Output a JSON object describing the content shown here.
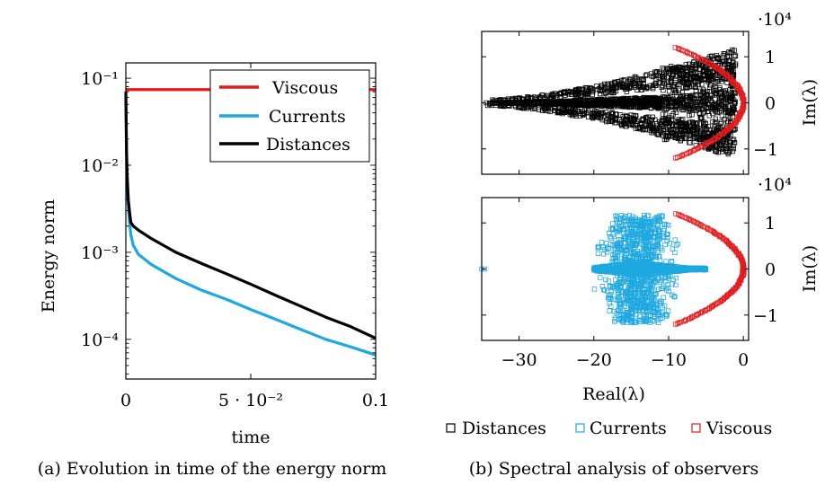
{
  "chart_data": [
    {
      "type": "line",
      "caption": "(a) Evolution in time of the energy norm",
      "xlabel": "time",
      "ylabel": "Energy norm",
      "y_scale": "log",
      "xlim": [
        0,
        0.1
      ],
      "ylim": [
        3.5e-05,
        0.15
      ],
      "x_ticks": [
        {
          "value": 0,
          "label": "0"
        },
        {
          "value": 0.05,
          "label": "5 · 10⁻²"
        },
        {
          "value": 0.1,
          "label": "0.1"
        }
      ],
      "y_ticks": [
        {
          "value": 0.0001,
          "label": "10⁻⁴"
        },
        {
          "value": 0.001,
          "label": "10⁻³"
        },
        {
          "value": 0.01,
          "label": "10⁻²"
        },
        {
          "value": 0.1,
          "label": "10⁻¹"
        }
      ],
      "grid": false,
      "legend_position": "top-right",
      "series": [
        {
          "name": "Viscous",
          "color": "#e31a1c",
          "x": [
            0,
            0.1
          ],
          "y": [
            0.074,
            0.074
          ]
        },
        {
          "name": "Currents",
          "color": "#1fa8e0",
          "x": [
            0,
            0.0003,
            0.0006,
            0.001,
            0.0015,
            0.002,
            0.003,
            0.005,
            0.01,
            0.02,
            0.03,
            0.04,
            0.05,
            0.06,
            0.07,
            0.08,
            0.09,
            0.1
          ],
          "y": [
            0.06,
            0.01,
            0.005,
            0.0033,
            0.0022,
            0.0016,
            0.0012,
            0.00095,
            0.00073,
            0.0005,
            0.00037,
            0.00029,
            0.00022,
            0.00017,
            0.00013,
            0.0001,
            8.2e-05,
            6.6e-05
          ]
        },
        {
          "name": "Distances",
          "color": "#000000",
          "x": [
            0,
            0.0003,
            0.0006,
            0.001,
            0.0015,
            0.002,
            0.003,
            0.005,
            0.01,
            0.02,
            0.03,
            0.04,
            0.05,
            0.06,
            0.07,
            0.08,
            0.09,
            0.1
          ],
          "y": [
            0.07,
            0.014,
            0.007,
            0.004,
            0.0029,
            0.0022,
            0.002,
            0.0018,
            0.00145,
            0.001,
            0.00075,
            0.00057,
            0.00043,
            0.00032,
            0.00024,
            0.00018,
            0.00014,
            0.000103
          ]
        }
      ]
    },
    {
      "type": "scatter",
      "caption": "(b) Spectral analysis of observers",
      "xlabel": "Real(λ)",
      "ylabel": "Im(λ)",
      "y_multiplier": "·10⁴",
      "xlim": [
        -35,
        0.7
      ],
      "ylim": [
        -1.55,
        1.55
      ],
      "x_ticks": [
        {
          "value": -30,
          "label": "−30"
        },
        {
          "value": -20,
          "label": "−20"
        },
        {
          "value": -10,
          "label": "−10"
        },
        {
          "value": 0,
          "label": "0"
        }
      ],
      "y_ticks": [
        {
          "value": -1,
          "label": "−1"
        },
        {
          "value": 0,
          "label": "0"
        },
        {
          "value": 1,
          "label": "1"
        }
      ],
      "marker": "open-square",
      "grid": false,
      "legend_position": "bottom",
      "legend": [
        {
          "name": "Distances",
          "color": "#000000"
        },
        {
          "name": "Currents",
          "color": "#1fa8e0"
        },
        {
          "name": "Viscous",
          "color": "#e31a1c"
        }
      ],
      "panels": [
        {
          "position": "top",
          "series": [
            {
              "name": "Viscous",
              "color": "#e31a1c",
              "shape": "parabola",
              "vertex_x": 0,
              "y_range": [
                -1.2,
                1.2
              ],
              "x_at_y_extreme": -9
            },
            {
              "name": "Distances",
              "color": "#000000",
              "shape": "cloud",
              "x_range": [
                -35,
                -1
              ],
              "y_extent_max": 1.2,
              "y_extent_at_far_left": 0.06,
              "count": 2200
            }
          ]
        },
        {
          "position": "bottom",
          "series": [
            {
              "name": "Viscous",
              "color": "#e31a1c",
              "shape": "parabola",
              "vertex_x": 0,
              "y_range": [
                -1.2,
                1.2
              ],
              "x_at_y_extreme": -9
            },
            {
              "name": "Currents",
              "color": "#1fa8e0",
              "shape": "cloud",
              "x_range": [
                -20,
                -5
              ],
              "y_extent_max": 1.2,
              "count": 1700
            },
            {
              "name": "Currents",
              "color": "#1fa8e0",
              "shape": "points",
              "x": [
                -35,
                -34.6
              ],
              "y": [
                0,
                0
              ]
            }
          ]
        }
      ]
    }
  ]
}
